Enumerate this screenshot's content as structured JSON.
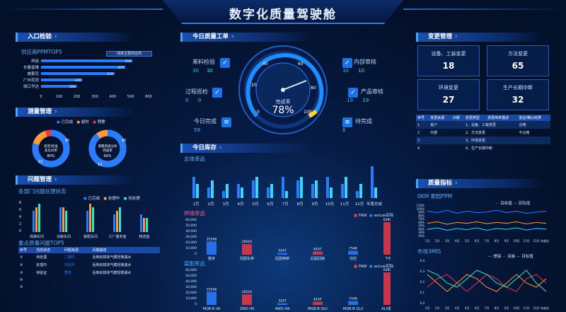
{
  "title": "数字化质量驾驶舱",
  "sections": {
    "incoming": "入口检验",
    "measure": "测量管理",
    "problem": "问题管理",
    "today_order": "今日质量工单",
    "today_stock": "今日库存",
    "change": "变更管理",
    "trend": "质量指标"
  },
  "supplier": {
    "title": "供应商PPMTOP5",
    "legend": "线束主要供应商",
    "names": [
      "邦迪",
      "长春富维",
      "威泰克",
      "广州花冠",
      "靖江华达"
    ],
    "values": [
      510,
      470,
      410,
      230,
      200
    ],
    "axis": [
      "0",
      "100",
      "200",
      "300",
      "400",
      "500",
      "600"
    ]
  },
  "measure": {
    "legend": [
      "已完成",
      "超时",
      "预警"
    ],
    "donut1": {
      "center": "检定/校准\n及比对率",
      "a": "80",
      "b": "15",
      "pct": "80%"
    },
    "donut2": {
      "center": "测量系统分析\n完成率",
      "a": "90",
      "b": "10",
      "pct": "90%"
    }
  },
  "problem": {
    "title": "各部门问题处理状态",
    "legend": [
      "已完成",
      "处理中",
      "待处理"
    ],
    "depts": [
      "焊接车间",
      "涂装车间",
      "装配车间",
      "工厂服务室",
      "物流室"
    ],
    "yaxis": [
      "0",
      "2",
      "4",
      "6",
      "8"
    ],
    "top5": "重点质量问题TOP5",
    "cols": [
      "序号",
      "当前状态",
      "问题来源",
      "问题描述"
    ],
    "rows": [
      [
        "待处理",
        "二期件",
        "后制动钳体气膜轻微漏水"
      ],
      [
        "处理中",
        "冲压件",
        "后制动钳体气膜轻微漏水"
      ],
      [
        "待验证",
        "质检",
        "后制动钳体气膜轻微漏水"
      ]
    ]
  },
  "order": {
    "items": [
      {
        "name": "来料检验",
        "a": "30",
        "b": "30"
      },
      {
        "name": "过程巡检",
        "a": "0",
        "b": "0"
      },
      {
        "name": "今日完成",
        "a": "59",
        "b": ""
      },
      {
        "name": "内部审核",
        "a": "10",
        "b": "10"
      },
      {
        "name": "产品审核",
        "a": "19",
        "b": "19"
      },
      {
        "name": "待完成",
        "a": "6",
        "b": ""
      }
    ],
    "gauge": {
      "label": "完成率",
      "value": "78%",
      "ticks": [
        "0",
        "20",
        "40",
        "60",
        "80",
        "100"
      ]
    }
  },
  "stock": {
    "total_title": "总体库品",
    "months": [
      "1月",
      "2月",
      "3月",
      "4月",
      "5月",
      "6月",
      "7月",
      "8月",
      "9月",
      "10月",
      "11月",
      "12月",
      "年度总成"
    ],
    "welding_title": "焊接库品",
    "legend_faw": "FAW",
    "legend_actual": "actual实际",
    "welding_cats": [
      "整体",
      "前副车架",
      "后副两架",
      "后副回接",
      "前控",
      "下控"
    ],
    "welding_vals": [
      "25548",
      "20510",
      "3147",
      "6147",
      "7548",
      "62900"
    ],
    "weld_y": [
      "60,000",
      "50,000",
      "40,000",
      "30,000",
      "20,000",
      "10,000",
      "0"
    ],
    "assembly_title": "装配库品",
    "assembly_cats": [
      "MQB-B VA",
      "2WD HA",
      "4WD HA",
      "MQB-B QLV",
      "MQB-B QLU",
      "ALS整体"
    ],
    "assembly_vals": [
      "25546",
      "20510",
      "3147",
      "6147",
      "7548",
      "62900"
    ]
  },
  "change": {
    "cards": [
      {
        "label": "设备、工装变更",
        "value": "18"
      },
      {
        "label": "方法变更",
        "value": "65"
      },
      {
        "label": "环境变更",
        "value": "27"
      },
      {
        "label": "生产长期中断",
        "value": "32"
      }
    ],
    "cols": [
      "序号",
      "变更来源",
      "日期",
      "变更类型",
      "变更简单描述",
      "验证/确认结果"
    ],
    "rows": [
      [
        "1",
        "客户",
        "1、设备、工装变更",
        "合格"
      ],
      [
        "2",
        "内部",
        "2、方法变更",
        "不合格"
      ],
      [
        "3",
        "",
        "3、环境变更",
        ""
      ],
      [
        "4",
        "",
        "4、生产长期中断",
        ""
      ]
    ]
  },
  "trend": {
    "ppm_title": "0KM 索赔PPM",
    "ppm_legend": [
      "目标值",
      "实际值"
    ],
    "ppm_y": [
      "110%",
      "100%",
      "90%",
      "80%",
      "70%",
      "60%",
      "50%",
      "40%",
      "30%",
      "20%"
    ],
    "mis_title": "市场3MIS",
    "mis_legend": [
      "焊接",
      "涂装",
      "目标值"
    ],
    "mis_y": [
      "0.4",
      "0.3",
      "0.2",
      "0.1",
      "0.0"
    ],
    "months": [
      "1月",
      "2月",
      "3月",
      "4月",
      "5月",
      "6月",
      "7月",
      "8月",
      "9月",
      "10月",
      "11月",
      "12月",
      "年度总成"
    ]
  },
  "colors": {
    "accent": "#2a7cff",
    "green": "#2ee8c6",
    "orange": "#ff9b3d",
    "red": "#e8394a"
  }
}
